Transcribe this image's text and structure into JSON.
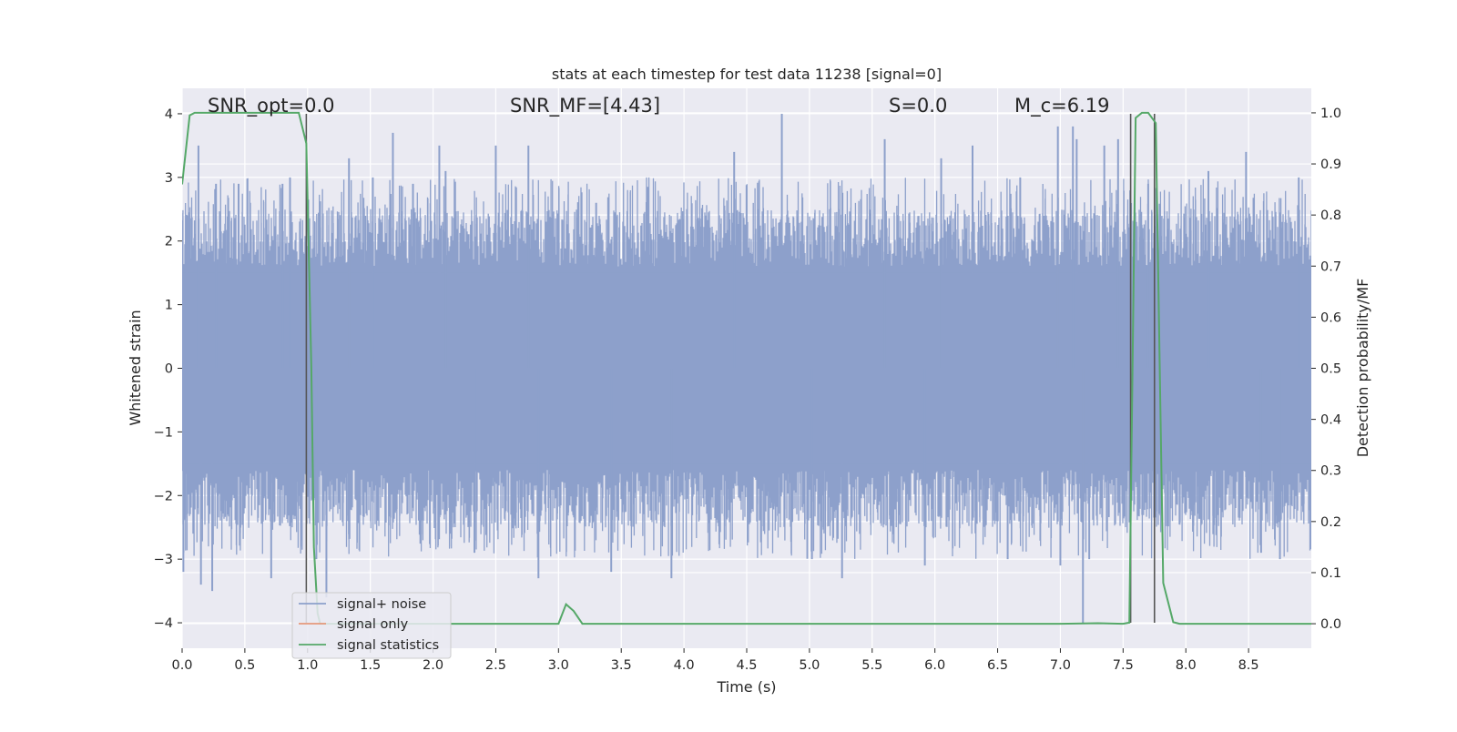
{
  "chart_data": {
    "type": "line",
    "title": "stats at each timestep for test data 11238 [signal=0]",
    "xlabel": "Time (s)",
    "ylabel_left": "Whitened strain",
    "ylabel_right": "Detection probability/MF",
    "xlim": [
      0.0,
      9.0
    ],
    "ylim_left": [
      -4.4,
      4.4
    ],
    "ylim_right": [
      -0.048,
      1.048
    ],
    "xticks": [
      0.0,
      0.5,
      1.0,
      1.5,
      2.0,
      2.5,
      3.0,
      3.5,
      4.0,
      4.5,
      5.0,
      5.5,
      6.0,
      6.5,
      7.0,
      7.5,
      8.0,
      8.5
    ],
    "xtick_labels": [
      "0.0",
      "0.5",
      "1.0",
      "1.5",
      "2.0",
      "2.5",
      "3.0",
      "3.5",
      "4.0",
      "4.5",
      "5.0",
      "5.5",
      "6.0",
      "6.5",
      "7.0",
      "7.5",
      "8.0",
      "8.5"
    ],
    "yticks_left": [
      -4,
      -3,
      -2,
      -1,
      0,
      1,
      2,
      3,
      4
    ],
    "ytick_labels_left": [
      "−4",
      "−3",
      "−2",
      "−1",
      "0",
      "1",
      "2",
      "3",
      "4"
    ],
    "yticks_right": [
      0.0,
      0.1,
      0.2,
      0.3,
      0.4,
      0.5,
      0.6,
      0.7,
      0.8,
      0.9,
      1.0
    ],
    "ytick_labels_right": [
      "0.0",
      "0.1",
      "0.2",
      "0.3",
      "0.4",
      "0.5",
      "0.6",
      "0.7",
      "0.8",
      "0.9",
      "1.0"
    ],
    "grid": true,
    "legend_position": "lower-left",
    "annotations": [
      {
        "text": "SNR_opt=0.0",
        "x": 0.2,
        "y": 4.1
      },
      {
        "text": "SNR_MF=[4.43]",
        "x": 2.6,
        "y": 4.1
      },
      {
        "text": "S=0.0",
        "x": 5.6,
        "y": 4.1
      },
      {
        "text": "M_c=6.19",
        "x": 6.6,
        "y": 4.1
      }
    ],
    "vertical_lines": [
      {
        "x": 0.99,
        "y": [
          -4.0,
          4.0
        ]
      },
      {
        "x": 7.56,
        "y": [
          -4.0,
          4.0
        ]
      },
      {
        "x": 7.75,
        "y": [
          -4.0,
          4.0
        ]
      }
    ],
    "series": [
      {
        "name": "signal+ noise",
        "axis": "left",
        "color": "#8da0cb",
        "noise": {
          "dense_band_sigma": 0.8,
          "spikes": [
            {
              "x": 0.01,
              "y": -3.2
            },
            {
              "x": 0.04,
              "y": 2.4
            },
            {
              "x": 0.13,
              "y": 3.5
            },
            {
              "x": 0.15,
              "y": -3.4
            },
            {
              "x": 0.24,
              "y": -3.5
            },
            {
              "x": 0.27,
              "y": 2.9
            },
            {
              "x": 0.45,
              "y": 2.9
            },
            {
              "x": 0.71,
              "y": -3.3
            },
            {
              "x": 0.8,
              "y": 2.9
            },
            {
              "x": 0.86,
              "y": 3.0
            },
            {
              "x": 1.07,
              "y": -3.0
            },
            {
              "x": 1.15,
              "y": -3.6
            },
            {
              "x": 1.33,
              "y": 3.3
            },
            {
              "x": 1.52,
              "y": 3.0
            },
            {
              "x": 1.68,
              "y": 3.7
            },
            {
              "x": 1.84,
              "y": 2.9
            },
            {
              "x": 2.05,
              "y": 3.5
            },
            {
              "x": 2.1,
              "y": 3.1
            },
            {
              "x": 2.33,
              "y": -2.9
            },
            {
              "x": 2.5,
              "y": 3.5
            },
            {
              "x": 2.76,
              "y": 3.5
            },
            {
              "x": 2.84,
              "y": -3.3
            },
            {
              "x": 3.3,
              "y": 2.6
            },
            {
              "x": 3.42,
              "y": -3.2
            },
            {
              "x": 3.9,
              "y": -3.3
            },
            {
              "x": 4.4,
              "y": 3.4
            },
            {
              "x": 4.78,
              "y": 4.0
            },
            {
              "x": 5.02,
              "y": -3.0
            },
            {
              "x": 5.26,
              "y": -3.3
            },
            {
              "x": 5.6,
              "y": 3.6
            },
            {
              "x": 5.92,
              "y": -3.1
            },
            {
              "x": 6.05,
              "y": 3.3
            },
            {
              "x": 6.3,
              "y": 3.5
            },
            {
              "x": 6.58,
              "y": -3.0
            },
            {
              "x": 6.68,
              "y": 3.0
            },
            {
              "x": 6.98,
              "y": 3.8
            },
            {
              "x": 7.0,
              "y": -3.1
            },
            {
              "x": 7.1,
              "y": 3.8
            },
            {
              "x": 7.13,
              "y": 3.6
            },
            {
              "x": 7.18,
              "y": -4.0
            },
            {
              "x": 7.23,
              "y": -3.0
            },
            {
              "x": 7.35,
              "y": 3.5
            },
            {
              "x": 7.46,
              "y": 3.6
            },
            {
              "x": 7.7,
              "y": 2.9
            },
            {
              "x": 8.18,
              "y": 3.1
            },
            {
              "x": 8.48,
              "y": 3.4
            },
            {
              "x": 8.6,
              "y": -2.9
            },
            {
              "x": 8.75,
              "y": -3.0
            },
            {
              "x": 8.9,
              "y": 3.0
            }
          ]
        }
      },
      {
        "name": "signal only",
        "axis": "left",
        "color": "#e5987b",
        "x": [],
        "y": []
      },
      {
        "name": "signal statistics",
        "axis": "right",
        "color": "#55a868",
        "x": [
          0.0,
          0.06,
          0.1,
          0.2,
          0.4,
          0.6,
          0.8,
          0.93,
          0.99,
          1.03,
          1.05,
          1.08,
          1.1,
          1.15,
          1.2,
          3.0,
          3.06,
          3.12,
          3.19,
          3.25,
          4.0,
          5.0,
          6.0,
          7.0,
          7.3,
          7.5,
          7.55,
          7.6,
          7.65,
          7.7,
          7.76,
          7.82,
          7.9,
          7.95,
          8.5,
          9.0
        ],
        "y": [
          0.86,
          0.995,
          1.0,
          1.0,
          1.0,
          1.0,
          1.0,
          1.0,
          0.94,
          0.5,
          0.15,
          0.02,
          0.0,
          0.0,
          0.0,
          0.0,
          0.038,
          0.025,
          0.0,
          0.0,
          0.0,
          0.0,
          0.0,
          0.0,
          0.001,
          0.0,
          0.002,
          0.99,
          1.0,
          1.0,
          0.98,
          0.08,
          0.003,
          0.0,
          0.0,
          0.0
        ]
      }
    ]
  }
}
